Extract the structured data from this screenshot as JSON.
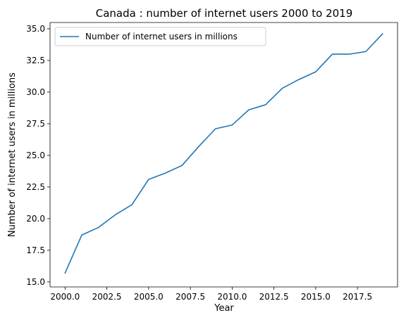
{
  "chart_data": {
    "type": "line",
    "title": "Canada : number of internet users 2000 to 2019",
    "xlabel": "Year",
    "ylabel": "Number of internet users in millions",
    "xlim": [
      1999.1,
      2019.9
    ],
    "ylim": [
      14.6,
      35.5
    ],
    "x_ticks": [
      2000.0,
      2002.5,
      2005.0,
      2007.5,
      2010.0,
      2012.5,
      2015.0,
      2017.5
    ],
    "x_tick_labels": [
      "2000.0",
      "2002.5",
      "2005.0",
      "2007.5",
      "2010.0",
      "2012.5",
      "2015.0",
      "2017.5"
    ],
    "y_ticks": [
      15.0,
      17.5,
      20.0,
      22.5,
      25.0,
      27.5,
      30.0,
      32.5,
      35.0
    ],
    "y_tick_labels": [
      "15.0",
      "17.5",
      "20.0",
      "22.5",
      "25.0",
      "27.5",
      "30.0",
      "32.5",
      "35.0"
    ],
    "grid": false,
    "legend_position": "upper-left",
    "series": [
      {
        "name": "Number of internet users in millions",
        "color": "#1f77b4",
        "x": [
          2000,
          2001,
          2002,
          2003,
          2004,
          2005,
          2006,
          2007,
          2008,
          2009,
          2010,
          2011,
          2012,
          2013,
          2014,
          2015,
          2016,
          2017,
          2018,
          2019
        ],
        "y": [
          15.7,
          18.7,
          19.3,
          20.3,
          21.1,
          23.1,
          23.6,
          24.2,
          25.7,
          27.1,
          27.4,
          28.6,
          29.0,
          30.3,
          31.0,
          31.6,
          33.0,
          33.0,
          33.2,
          34.6
        ]
      }
    ]
  }
}
